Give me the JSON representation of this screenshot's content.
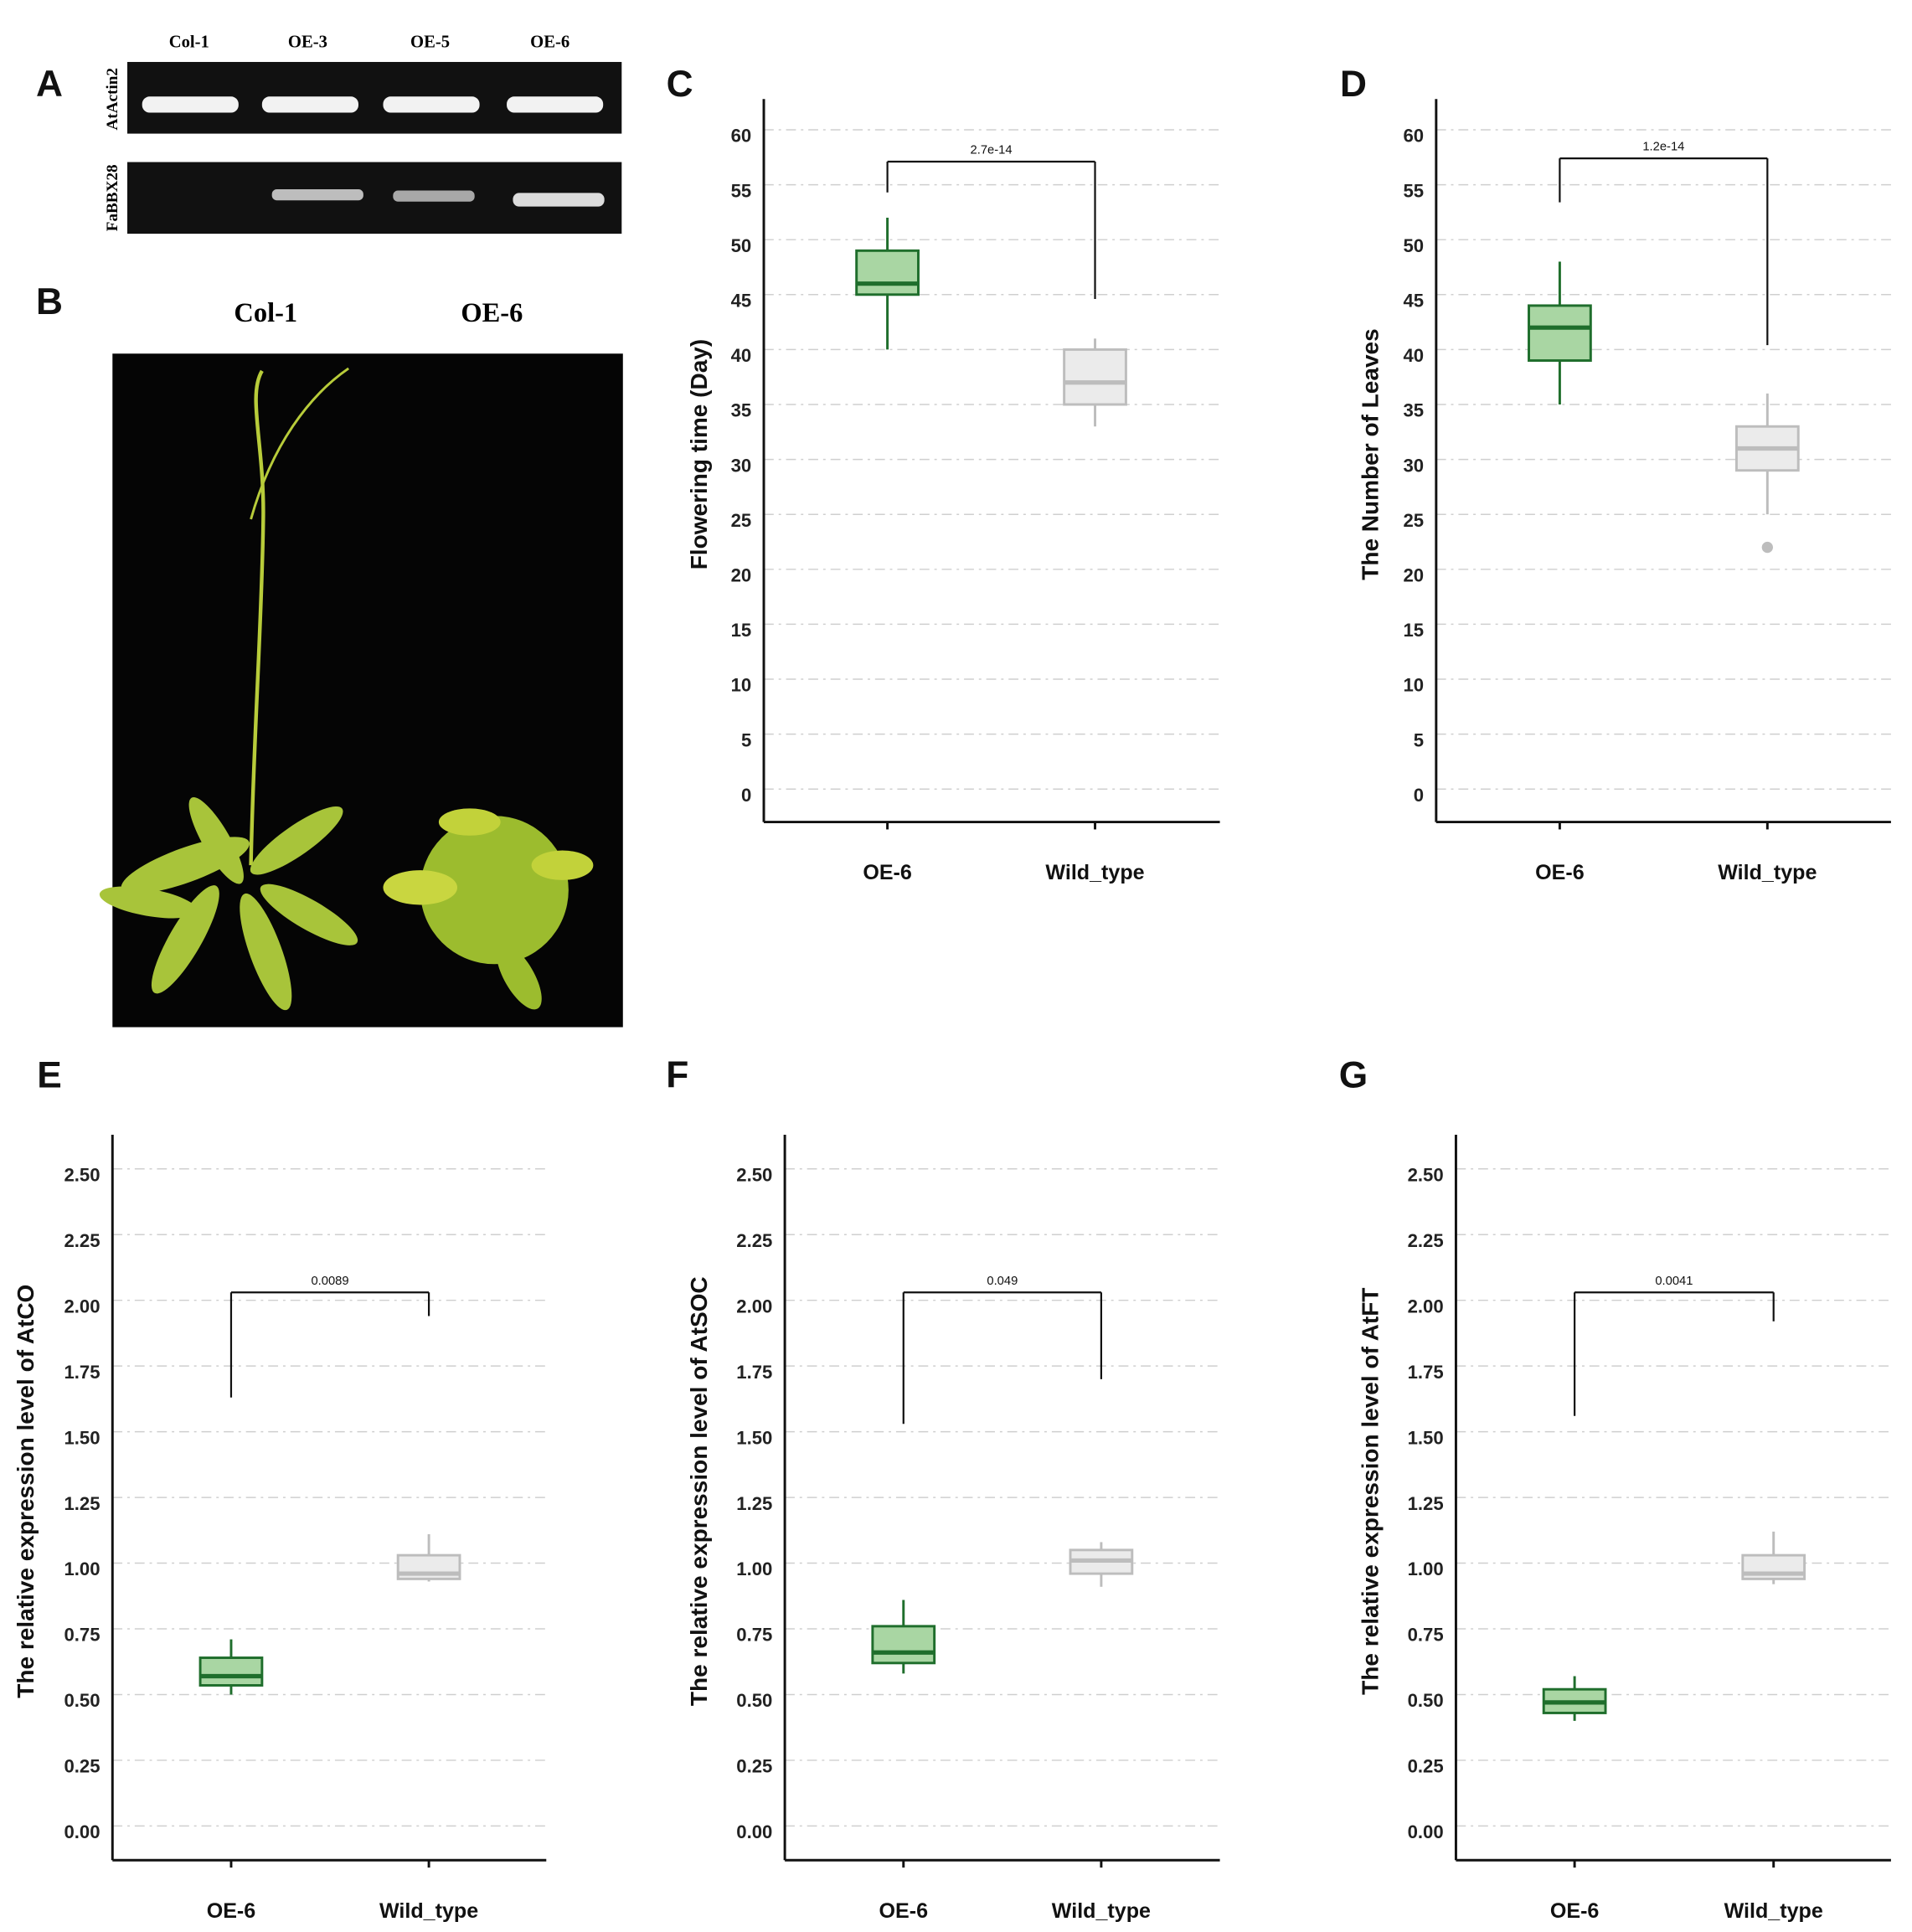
{
  "panel_labels": [
    "A",
    "B",
    "C",
    "D",
    "E",
    "F",
    "G"
  ],
  "gel": {
    "lanes": [
      "Col-1",
      "OE-3",
      "OE-5",
      "OE-6"
    ],
    "genes": [
      "AtActin2",
      "FaBBX28"
    ]
  },
  "photo": {
    "labels": [
      "Col-1",
      "OE-6"
    ]
  },
  "chart_data": [
    {
      "type": "box",
      "ylabel": "Flowering time (Day)",
      "categories": [
        "OE-6",
        "Wild_type"
      ],
      "boxes": [
        {
          "fill": "#a9d6a3",
          "stroke": "#1f6e2c",
          "min": 40,
          "q1": 45,
          "median": 46,
          "q3": 49,
          "max": 52
        },
        {
          "fill": "#ebebeb",
          "stroke": "#bdbdbd",
          "min": 33,
          "q1": 35,
          "median": 37,
          "q3": 40,
          "max": 41
        }
      ],
      "bracket": {
        "label": "2.7e-14",
        "y": 57.1,
        "left_end": 54.3,
        "right_end": 44.6
      },
      "ylim": [
        -3,
        62.8
      ],
      "yticks": [
        0,
        5,
        10,
        15,
        20,
        25,
        30,
        35,
        40,
        45,
        50,
        55,
        60
      ],
      "grid": true
    },
    {
      "type": "box",
      "ylabel": "The Number of Leaves",
      "categories": [
        "OE-6",
        "Wild_type"
      ],
      "boxes": [
        {
          "fill": "#a9d6a3",
          "stroke": "#1f6e2c",
          "min": 35,
          "q1": 39,
          "median": 42,
          "q3": 44,
          "max": 48
        },
        {
          "fill": "#ebebeb",
          "stroke": "#bdbdbd",
          "min": 25,
          "q1": 29,
          "median": 31,
          "q3": 33,
          "max": 36,
          "outliers": [
            22
          ]
        }
      ],
      "bracket": {
        "label": "1.2e-14",
        "y": 57.4,
        "left_end": 53.4,
        "right_end": 40.4
      },
      "ylim": [
        -3,
        62.8
      ],
      "yticks": [
        0,
        5,
        10,
        15,
        20,
        25,
        30,
        35,
        40,
        45,
        50,
        55,
        60
      ],
      "grid": true
    },
    {
      "type": "box",
      "ylabel": "The relative expression level of AtCO",
      "categories": [
        "OE-6",
        "Wild_type"
      ],
      "boxes": [
        {
          "fill": "#a9d6a3",
          "stroke": "#1f6e2c",
          "min": 0.5,
          "q1": 0.535,
          "median": 0.57,
          "q3": 0.64,
          "max": 0.71
        },
        {
          "fill": "#ebebeb",
          "stroke": "#bdbdbd",
          "min": 0.93,
          "q1": 0.94,
          "median": 0.96,
          "q3": 1.03,
          "max": 1.11
        }
      ],
      "bracket": {
        "label": "0.0089",
        "y": 2.03,
        "left_end": 1.63,
        "right_end": 1.94
      },
      "ylim": [
        -0.13,
        2.63
      ],
      "yticks": [
        {
          "value": 0,
          "label": "0.00"
        },
        {
          "value": 0.25,
          "label": "0.25"
        },
        {
          "value": 0.5,
          "label": "0.50"
        },
        {
          "value": 0.75,
          "label": "0.75"
        },
        {
          "value": 1,
          "label": "1.00"
        },
        {
          "value": 1.25,
          "label": "1.25"
        },
        {
          "value": 1.5,
          "label": "1.50"
        },
        {
          "value": 1.75,
          "label": "1.75"
        },
        {
          "value": 2,
          "label": "2.00"
        },
        {
          "value": 2.25,
          "label": "2.25"
        },
        {
          "value": 2.5,
          "label": "2.50"
        }
      ],
      "grid": true
    },
    {
      "type": "box",
      "ylabel": "The relative expression level of AtSOC",
      "categories": [
        "OE-6",
        "Wild_type"
      ],
      "boxes": [
        {
          "fill": "#a9d6a3",
          "stroke": "#1f6e2c",
          "min": 0.58,
          "q1": 0.62,
          "median": 0.66,
          "q3": 0.76,
          "max": 0.86
        },
        {
          "fill": "#ebebeb",
          "stroke": "#bdbdbd",
          "min": 0.91,
          "q1": 0.96,
          "median": 1.01,
          "q3": 1.05,
          "max": 1.08
        }
      ],
      "bracket": {
        "label": "0.049",
        "y": 2.03,
        "left_end": 1.53,
        "right_end": 1.7
      },
      "ylim": [
        -0.13,
        2.63
      ],
      "yticks": [
        {
          "value": 0,
          "label": "0.00"
        },
        {
          "value": 0.25,
          "label": "0.25"
        },
        {
          "value": 0.5,
          "label": "0.50"
        },
        {
          "value": 0.75,
          "label": "0.75"
        },
        {
          "value": 1,
          "label": "1.00"
        },
        {
          "value": 1.25,
          "label": "1.25"
        },
        {
          "value": 1.5,
          "label": "1.50"
        },
        {
          "value": 1.75,
          "label": "1.75"
        },
        {
          "value": 2,
          "label": "2.00"
        },
        {
          "value": 2.25,
          "label": "2.25"
        },
        {
          "value": 2.5,
          "label": "2.50"
        }
      ],
      "grid": true
    },
    {
      "type": "box",
      "ylabel": "The relative expression level of AtFT",
      "categories": [
        "OE-6",
        "Wild_type"
      ],
      "boxes": [
        {
          "fill": "#a9d6a3",
          "stroke": "#1f6e2c",
          "min": 0.4,
          "q1": 0.43,
          "median": 0.47,
          "q3": 0.52,
          "max": 0.57
        },
        {
          "fill": "#ebebeb",
          "stroke": "#bdbdbd",
          "min": 0.92,
          "q1": 0.94,
          "median": 0.96,
          "q3": 1.03,
          "max": 1.12
        }
      ],
      "bracket": {
        "label": "0.0041",
        "y": 2.03,
        "left_end": 1.56,
        "right_end": 1.92
      },
      "ylim": [
        -0.13,
        2.63
      ],
      "yticks": [
        {
          "value": 0,
          "label": "0.00"
        },
        {
          "value": 0.25,
          "label": "0.25"
        },
        {
          "value": 0.5,
          "label": "0.50"
        },
        {
          "value": 0.75,
          "label": "0.75"
        },
        {
          "value": 1,
          "label": "1.00"
        },
        {
          "value": 1.25,
          "label": "1.25"
        },
        {
          "value": 1.5,
          "label": "1.50"
        },
        {
          "value": 1.75,
          "label": "1.75"
        },
        {
          "value": 2,
          "label": "2.00"
        },
        {
          "value": 2.25,
          "label": "2.25"
        },
        {
          "value": 2.5,
          "label": "2.50"
        }
      ],
      "grid": true
    }
  ]
}
